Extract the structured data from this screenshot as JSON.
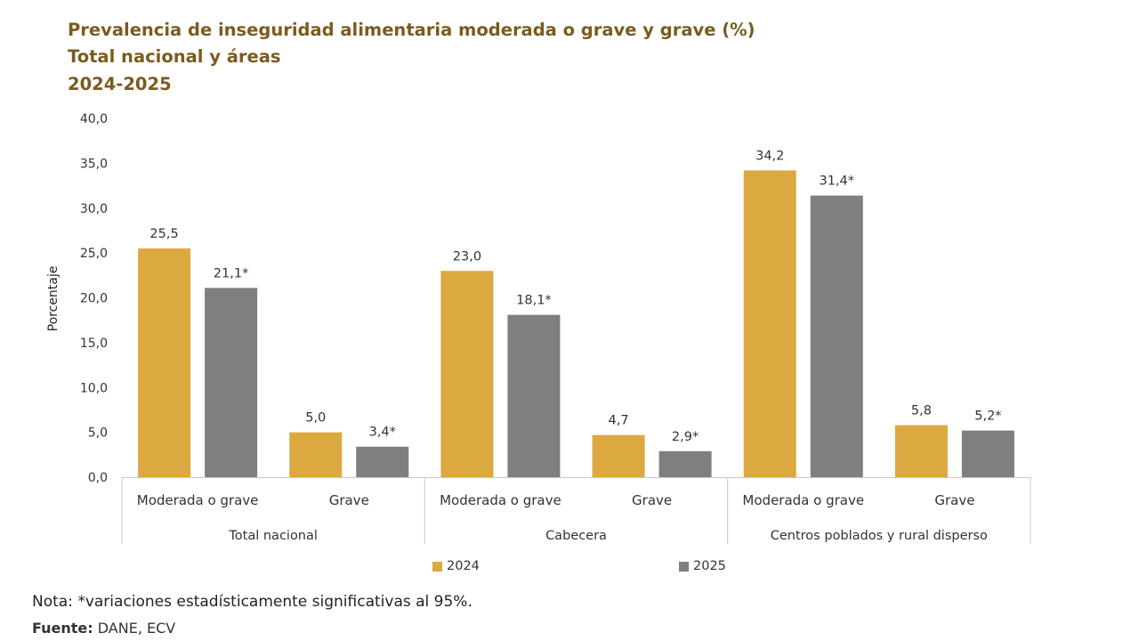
{
  "chart_data": {
    "type": "bar",
    "title_lines": [
      "Prevalencia de inseguridad alimentaria moderada o grave y grave (%)",
      "Total nacional y áreas",
      "2024-2025"
    ],
    "ylabel": "Porcentaje",
    "ylim": [
      0,
      40
    ],
    "yticks": [
      "0,0",
      "5,0",
      "10,0",
      "15,0",
      "20,0",
      "25,0",
      "30,0",
      "35,0",
      "40,0"
    ],
    "groups": [
      "Total nacional",
      "Cabecera",
      "Centros poblados y rural disperso"
    ],
    "categories": [
      "Moderada o grave",
      "Grave",
      "Moderada o grave",
      "Grave",
      "Moderada o grave",
      "Grave"
    ],
    "series": [
      {
        "name": "2024",
        "color": "#dca840",
        "values": [
          25.5,
          5.0,
          23.0,
          4.7,
          34.2,
          5.8
        ],
        "labels": [
          "25,5",
          "5,0",
          "23,0",
          "4,7",
          "34,2",
          "5,8"
        ]
      },
      {
        "name": "2025",
        "color": "#7f7f7f",
        "values": [
          21.1,
          3.4,
          18.1,
          2.9,
          31.4,
          5.2
        ],
        "labels": [
          "21,1*",
          "3,4*",
          "18,1*",
          "2,9*",
          "31,4*",
          "5,2*"
        ]
      }
    ],
    "legend_position": "bottom",
    "grid": false
  },
  "note": "Nota: *variaciones estadísticamente significativas al 95%.",
  "source_label": "Fuente:",
  "source_text": " DANE, ECV"
}
